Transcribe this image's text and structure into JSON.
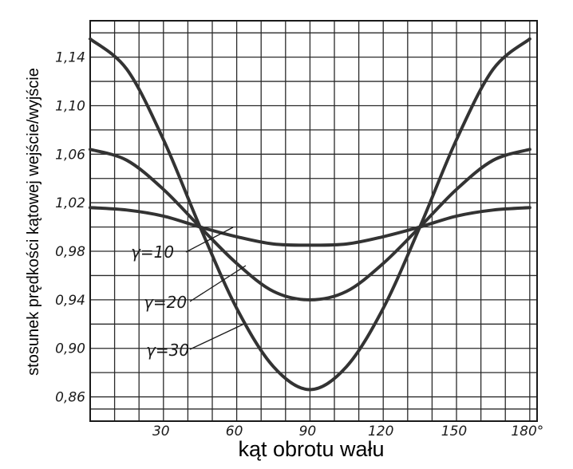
{
  "chart_data": {
    "type": "line",
    "title": "",
    "xlabel": "kąt obrotu wału",
    "ylabel": "stosunek prędkości kątowej wejście/wyjście",
    "xlim": [
      0,
      183
    ],
    "ylim": [
      0.84,
      1.17
    ],
    "grid": true,
    "x_ticks": [
      30,
      60,
      90,
      120,
      150,
      180
    ],
    "x_tick_labels": [
      "30",
      "60",
      "90",
      "120",
      "150",
      "180°"
    ],
    "y_ticks": [
      0.86,
      0.9,
      0.94,
      0.98,
      1.02,
      1.06,
      1.1,
      1.14
    ],
    "y_tick_labels": [
      "0,86",
      "0,90",
      "0,94",
      "0,98",
      "1,02",
      "1,06",
      "1,10",
      "1,14"
    ],
    "series": [
      {
        "label": "γ=10",
        "angle_deg": 10,
        "x": [
          0,
          15,
          30,
          45,
          60,
          75,
          90,
          105,
          120,
          135,
          150,
          165,
          180
        ],
        "y": [
          1.016,
          1.014,
          1.009,
          1.0,
          0.992,
          0.986,
          0.985,
          0.986,
          0.992,
          1.0,
          1.009,
          1.014,
          1.016
        ]
      },
      {
        "label": "γ=20",
        "angle_deg": 20,
        "x": [
          0,
          15,
          30,
          45,
          60,
          75,
          90,
          105,
          120,
          135,
          150,
          165,
          180
        ],
        "y": [
          1.064,
          1.055,
          1.031,
          1.0,
          0.97,
          0.947,
          0.94,
          0.947,
          0.97,
          1.0,
          1.031,
          1.055,
          1.064
        ]
      },
      {
        "label": "γ=30",
        "angle_deg": 30,
        "x": [
          0,
          15,
          30,
          45,
          60,
          75,
          90,
          105,
          120,
          135,
          150,
          165,
          180
        ],
        "y": [
          1.155,
          1.13,
          1.072,
          1.0,
          0.933,
          0.885,
          0.866,
          0.885,
          0.933,
          1.0,
          1.072,
          1.13,
          1.155
        ]
      }
    ]
  }
}
